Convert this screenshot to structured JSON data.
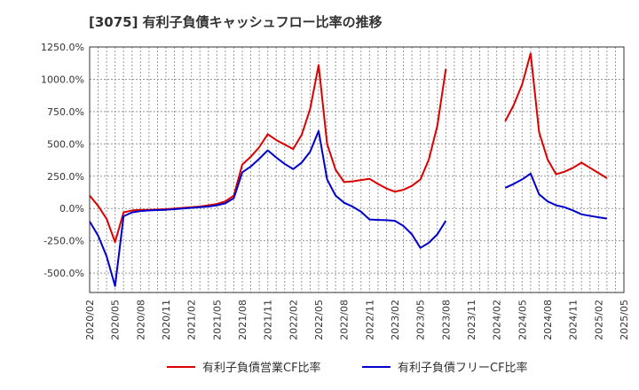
{
  "chart_data": {
    "type": "line",
    "title": "[3075]  有利子負債キャッシュフロー比率の推移",
    "xlabel": "",
    "ylabel": "",
    "ylim": [
      -650,
      1250
    ],
    "y_ticks": [
      "1250.0%",
      "1000.0%",
      "750.0%",
      "500.0%",
      "250.0%",
      "0.0%",
      "-250.0%",
      "-500.0%"
    ],
    "y_tick_values": [
      1250,
      1000,
      750,
      500,
      250,
      0,
      -250,
      -500
    ],
    "x_ticks": [
      "2020/02",
      "2020/05",
      "2020/08",
      "2020/11",
      "2021/02",
      "2021/05",
      "2021/08",
      "2021/11",
      "2022/02",
      "2022/05",
      "2022/08",
      "2022/11",
      "2023/02",
      "2023/05",
      "2023/08",
      "2023/11",
      "2024/02",
      "2024/05",
      "2024/08",
      "2024/11",
      "2025/02",
      "2025/05"
    ],
    "grid": true,
    "legend_position": "bottom",
    "series": [
      {
        "name": "有利子負債営業CF比率",
        "color": "#dd0000",
        "values": [
          100,
          20,
          -80,
          -260,
          -30,
          -15,
          -10,
          -10,
          -8,
          -5,
          0,
          5,
          10,
          15,
          25,
          35,
          55,
          100,
          340,
          400,
          475,
          575,
          530,
          495,
          460,
          570,
          770,
          1110,
          500,
          300,
          205,
          210,
          220,
          230,
          190,
          155,
          130,
          145,
          175,
          225,
          380,
          640,
          1080,
          null,
          null,
          null,
          null,
          null,
          null,
          675,
          800,
          960,
          1200,
          590,
          380,
          265,
          285,
          315,
          355,
          315,
          275,
          235
        ]
      },
      {
        "name": "有利子負債フリーCF比率",
        "color": "#0000cc",
        "values": [
          -100,
          -210,
          -370,
          -600,
          -60,
          -30,
          -20,
          -15,
          -12,
          -10,
          -5,
          0,
          5,
          10,
          15,
          25,
          40,
          80,
          280,
          325,
          385,
          450,
          395,
          345,
          305,
          355,
          440,
          600,
          225,
          100,
          45,
          15,
          -25,
          -85,
          -88,
          -90,
          -95,
          -135,
          -200,
          -305,
          -265,
          -200,
          -95,
          null,
          null,
          null,
          null,
          null,
          null,
          160,
          190,
          225,
          270,
          110,
          55,
          25,
          10,
          -15,
          -45,
          -57,
          -68,
          -78
        ]
      }
    ]
  }
}
